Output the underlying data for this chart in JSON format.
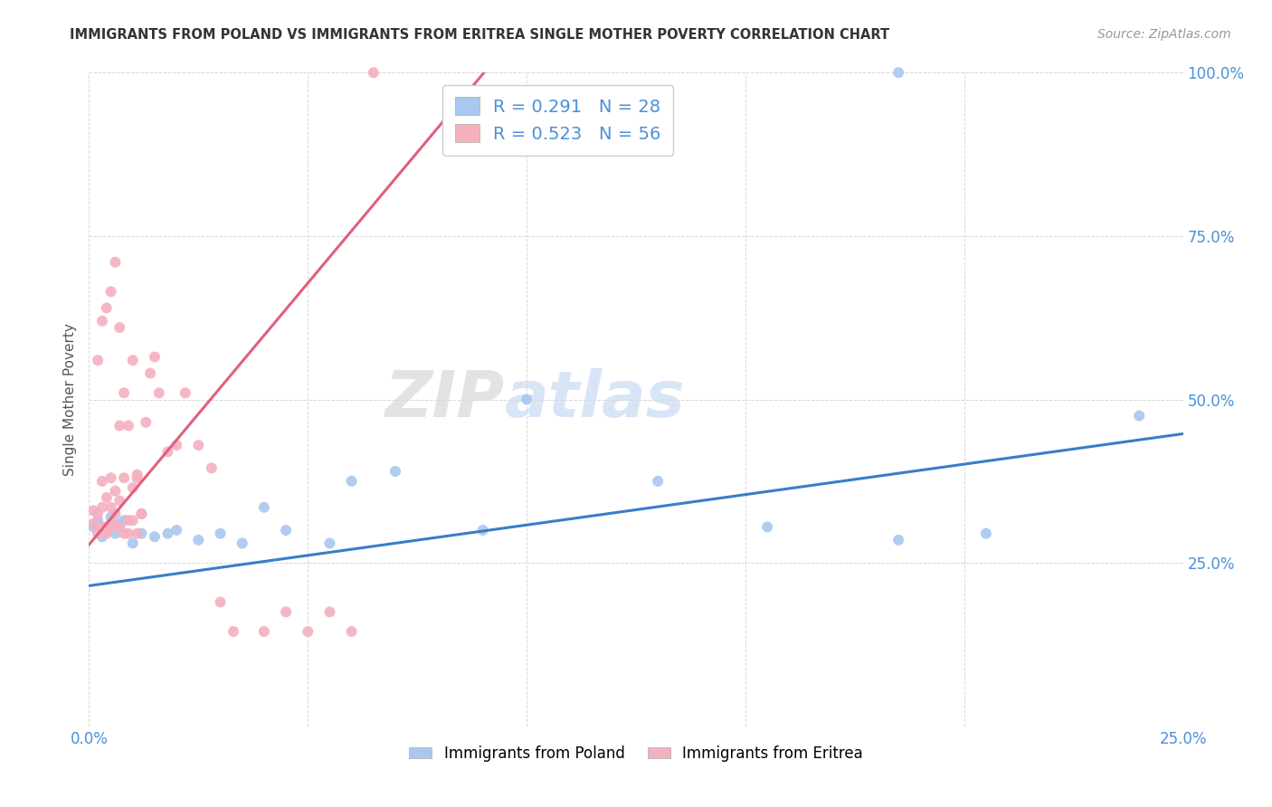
{
  "title": "IMMIGRANTS FROM POLAND VS IMMIGRANTS FROM ERITREA SINGLE MOTHER POVERTY CORRELATION CHART",
  "source": "Source: ZipAtlas.com",
  "ylabel": "Single Mother Poverty",
  "xlim": [
    0.0,
    0.25
  ],
  "ylim": [
    0.0,
    1.0
  ],
  "poland_color": "#a8c8f0",
  "eritrea_color": "#f5b0bf",
  "poland_line_color": "#3a7dc9",
  "eritrea_line_color": "#e0607a",
  "poland_R": "0.291",
  "poland_N": "28",
  "eritrea_R": "0.523",
  "eritrea_N": "56",
  "legend_label_poland": "Immigrants from Poland",
  "legend_label_eritrea": "Immigrants from Eritrea",
  "label_color": "#4a90d9",
  "watermark_text": "ZIPatlas",
  "background_color": "#ffffff",
  "grid_color": "#d8d8d8",
  "title_color": "#333333",
  "source_color": "#999999",
  "poland_x": [
    0.001,
    0.002,
    0.003,
    0.004,
    0.005,
    0.006,
    0.007,
    0.008,
    0.01,
    0.012,
    0.015,
    0.018,
    0.02,
    0.025,
    0.03,
    0.035,
    0.04,
    0.045,
    0.055,
    0.06,
    0.07,
    0.09,
    0.1,
    0.13,
    0.155,
    0.185,
    0.205,
    0.24
  ],
  "poland_y": [
    0.305,
    0.315,
    0.29,
    0.3,
    0.32,
    0.295,
    0.31,
    0.315,
    0.28,
    0.295,
    0.29,
    0.295,
    0.3,
    0.285,
    0.295,
    0.28,
    0.335,
    0.3,
    0.28,
    0.375,
    0.39,
    0.3,
    0.5,
    0.375,
    0.305,
    0.285,
    0.295,
    0.475
  ],
  "eritrea_x": [
    0.001,
    0.001,
    0.002,
    0.002,
    0.003,
    0.003,
    0.003,
    0.004,
    0.004,
    0.004,
    0.005,
    0.005,
    0.005,
    0.006,
    0.006,
    0.006,
    0.007,
    0.007,
    0.007,
    0.008,
    0.008,
    0.009,
    0.009,
    0.01,
    0.01,
    0.011,
    0.011,
    0.012,
    0.013,
    0.014,
    0.015,
    0.016,
    0.018,
    0.02,
    0.022,
    0.025,
    0.028,
    0.03,
    0.033,
    0.04,
    0.045,
    0.05,
    0.055,
    0.06,
    0.002,
    0.003,
    0.004,
    0.005,
    0.006,
    0.007,
    0.008,
    0.009,
    0.01,
    0.011,
    0.012,
    0.065
  ],
  "eritrea_y": [
    0.31,
    0.33,
    0.295,
    0.325,
    0.305,
    0.335,
    0.375,
    0.295,
    0.35,
    0.305,
    0.335,
    0.38,
    0.31,
    0.305,
    0.36,
    0.325,
    0.305,
    0.46,
    0.345,
    0.295,
    0.38,
    0.315,
    0.295,
    0.315,
    0.365,
    0.295,
    0.38,
    0.325,
    0.465,
    0.54,
    0.565,
    0.51,
    0.42,
    0.43,
    0.51,
    0.43,
    0.395,
    0.19,
    0.145,
    0.145,
    0.175,
    0.145,
    0.175,
    0.145,
    0.56,
    0.62,
    0.64,
    0.665,
    0.71,
    0.61,
    0.51,
    0.46,
    0.56,
    0.385,
    0.325,
    1.005
  ],
  "eritrea_line_x0": 0.0,
  "eritrea_line_y0": 0.278,
  "eritrea_line_slope": 8.0,
  "eritrea_line_xend": 0.09,
  "eritrea_dash_xstart": 0.09,
  "eritrea_dash_xend": 0.25,
  "poland_line_x0": 0.0,
  "poland_line_y0": 0.215,
  "poland_line_xend": 0.25,
  "poland_line_slope": 0.93
}
